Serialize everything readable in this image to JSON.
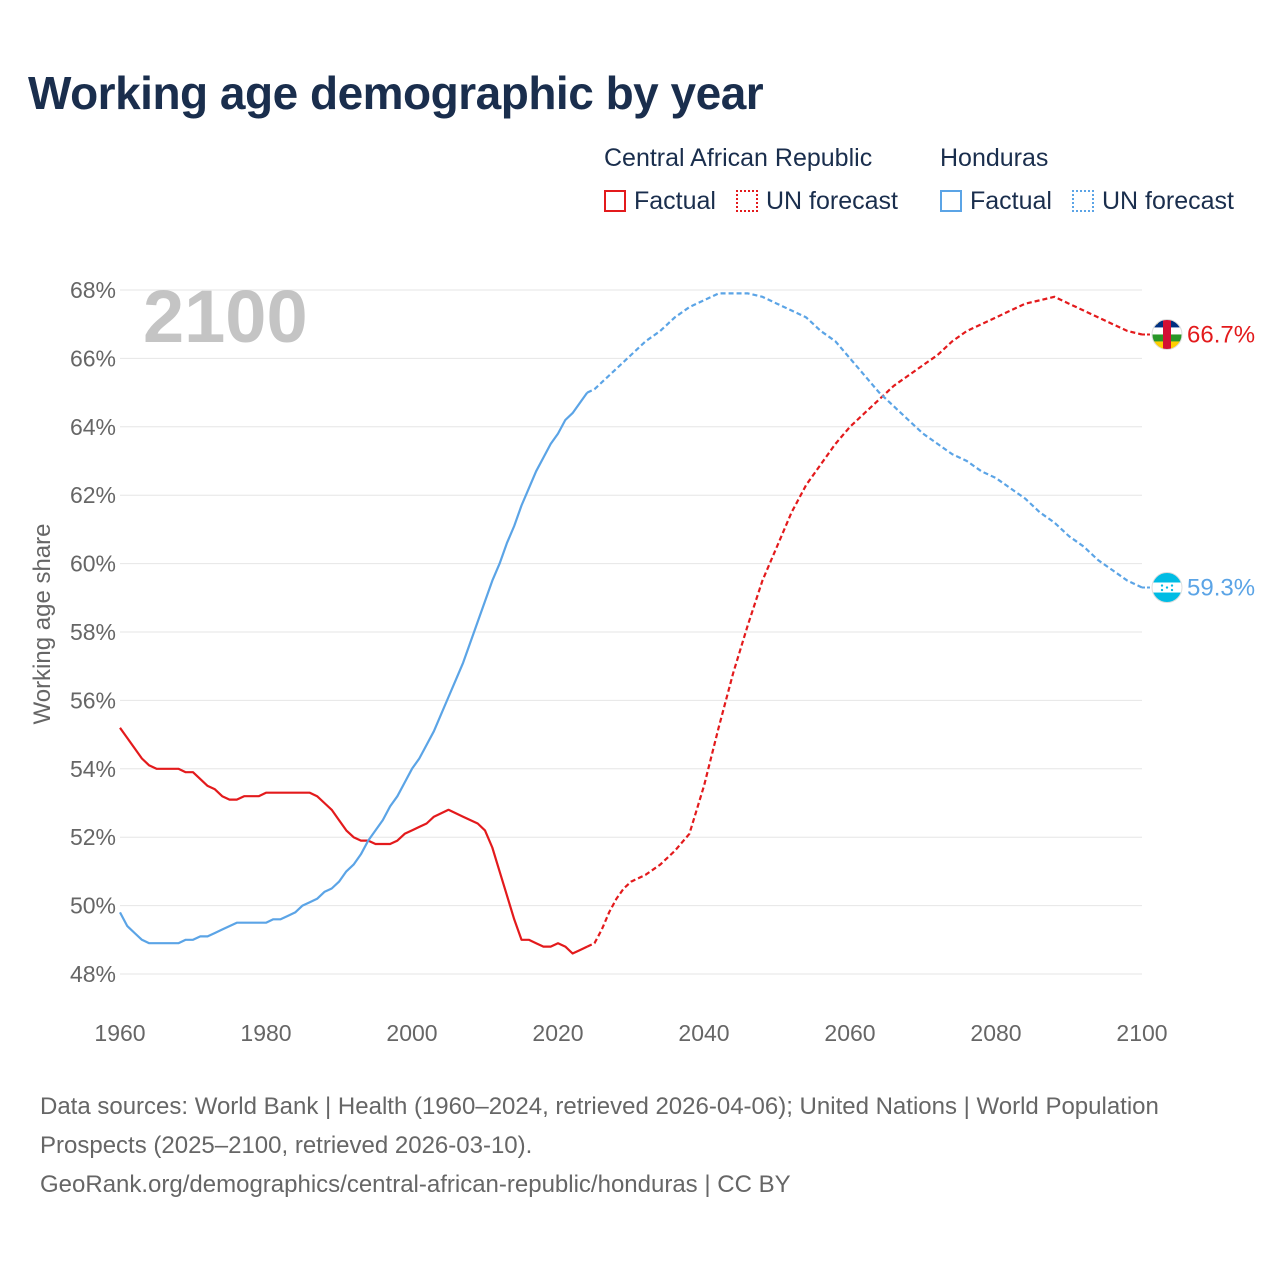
{
  "title": "Working age demographic by year",
  "legend": {
    "groups": [
      {
        "country": "Central African Republic",
        "color": "#e31a1c",
        "factual_label": "Factual",
        "forecast_label": "UN forecast"
      },
      {
        "country": "Honduras",
        "color": "#5ba4e6",
        "factual_label": "Factual",
        "forecast_label": "UN forecast"
      }
    ]
  },
  "year_watermark": "2100",
  "end_labels": {
    "car": "66.7%",
    "hnd": "59.3%"
  },
  "sources": {
    "line1": "Data sources: World Bank | Health (1960–2024, retrieved 2026-04-06); United Nations | World Population Prospects (2025–2100, retrieved 2026-03-10).",
    "line2": "GeoRank.org/demographics/central-african-republic/honduras | CC BY"
  },
  "chart_data": {
    "type": "line",
    "title": "Working age demographic by year",
    "xlabel": "",
    "ylabel": "Working age share",
    "xlim": [
      1960,
      2100
    ],
    "ylim": [
      47,
      68.5
    ],
    "x_ticks": [
      1960,
      1980,
      2000,
      2020,
      2040,
      2060,
      2080,
      2100
    ],
    "y_ticks": [
      48,
      50,
      52,
      54,
      56,
      58,
      60,
      62,
      64,
      66,
      68
    ],
    "y_tick_labels": [
      "48%",
      "50%",
      "52%",
      "54%",
      "56%",
      "58%",
      "60%",
      "62%",
      "64%",
      "66%",
      "68%"
    ],
    "x_tick_labels": [
      "1960",
      "1980",
      "2000",
      "2020",
      "2040",
      "2060",
      "2080",
      "2100"
    ],
    "factual_end_year": 2024,
    "series": [
      {
        "name": "Central African Republic",
        "color": "#e31a1c",
        "x": [
          1960,
          1961,
          1962,
          1963,
          1964,
          1965,
          1966,
          1967,
          1968,
          1969,
          1970,
          1971,
          1972,
          1973,
          1974,
          1975,
          1976,
          1977,
          1978,
          1979,
          1980,
          1981,
          1982,
          1983,
          1984,
          1985,
          1986,
          1987,
          1988,
          1989,
          1990,
          1991,
          1992,
          1993,
          1994,
          1995,
          1996,
          1997,
          1998,
          1999,
          2000,
          2001,
          2002,
          2003,
          2004,
          2005,
          2006,
          2007,
          2008,
          2009,
          2010,
          2011,
          2012,
          2013,
          2014,
          2015,
          2016,
          2017,
          2018,
          2019,
          2020,
          2021,
          2022,
          2023,
          2024,
          2025,
          2026,
          2027,
          2028,
          2029,
          2030,
          2032,
          2034,
          2036,
          2038,
          2040,
          2042,
          2044,
          2046,
          2048,
          2050,
          2052,
          2054,
          2056,
          2058,
          2060,
          2062,
          2064,
          2066,
          2068,
          2070,
          2072,
          2074,
          2076,
          2078,
          2080,
          2082,
          2084,
          2086,
          2088,
          2090,
          2092,
          2094,
          2096,
          2098,
          2100
        ],
        "y": [
          55.2,
          54.9,
          54.6,
          54.3,
          54.1,
          54.0,
          54.0,
          54.0,
          54.0,
          53.9,
          53.9,
          53.7,
          53.5,
          53.4,
          53.2,
          53.1,
          53.1,
          53.2,
          53.2,
          53.2,
          53.3,
          53.3,
          53.3,
          53.3,
          53.3,
          53.3,
          53.3,
          53.2,
          53.0,
          52.8,
          52.5,
          52.2,
          52.0,
          51.9,
          51.9,
          51.8,
          51.8,
          51.8,
          51.9,
          52.1,
          52.2,
          52.3,
          52.4,
          52.6,
          52.7,
          52.8,
          52.7,
          52.6,
          52.5,
          52.4,
          52.2,
          51.7,
          51.0,
          50.3,
          49.6,
          49.0,
          49.0,
          48.9,
          48.8,
          48.8,
          48.9,
          48.8,
          48.6,
          48.7,
          48.8,
          48.9,
          49.3,
          49.8,
          50.2,
          50.5,
          50.7,
          50.9,
          51.2,
          51.6,
          52.1,
          53.5,
          55.2,
          56.8,
          58.2,
          59.5,
          60.5,
          61.5,
          62.3,
          62.9,
          63.5,
          64.0,
          64.4,
          64.8,
          65.2,
          65.5,
          65.8,
          66.1,
          66.5,
          66.8,
          67.0,
          67.2,
          67.4,
          67.6,
          67.7,
          67.8,
          67.6,
          67.4,
          67.2,
          67.0,
          66.8,
          66.7
        ]
      },
      {
        "name": "Honduras",
        "color": "#5ba4e6",
        "x": [
          1960,
          1961,
          1962,
          1963,
          1964,
          1965,
          1966,
          1967,
          1968,
          1969,
          1970,
          1971,
          1972,
          1973,
          1974,
          1975,
          1976,
          1977,
          1978,
          1979,
          1980,
          1981,
          1982,
          1983,
          1984,
          1985,
          1986,
          1987,
          1988,
          1989,
          1990,
          1991,
          1992,
          1993,
          1994,
          1995,
          1996,
          1997,
          1998,
          1999,
          2000,
          2001,
          2002,
          2003,
          2004,
          2005,
          2006,
          2007,
          2008,
          2009,
          2010,
          2011,
          2012,
          2013,
          2014,
          2015,
          2016,
          2017,
          2018,
          2019,
          2020,
          2021,
          2022,
          2023,
          2024,
          2025,
          2026,
          2028,
          2030,
          2032,
          2034,
          2036,
          2038,
          2040,
          2042,
          2044,
          2046,
          2048,
          2050,
          2052,
          2054,
          2056,
          2058,
          2060,
          2062,
          2064,
          2066,
          2068,
          2070,
          2072,
          2074,
          2076,
          2078,
          2080,
          2082,
          2084,
          2086,
          2088,
          2090,
          2092,
          2094,
          2096,
          2098,
          2100
        ],
        "y": [
          49.8,
          49.4,
          49.2,
          49.0,
          48.9,
          48.9,
          48.9,
          48.9,
          48.9,
          49.0,
          49.0,
          49.1,
          49.1,
          49.2,
          49.3,
          49.4,
          49.5,
          49.5,
          49.5,
          49.5,
          49.5,
          49.6,
          49.6,
          49.7,
          49.8,
          50.0,
          50.1,
          50.2,
          50.4,
          50.5,
          50.7,
          51.0,
          51.2,
          51.5,
          51.9,
          52.2,
          52.5,
          52.9,
          53.2,
          53.6,
          54.0,
          54.3,
          54.7,
          55.1,
          55.6,
          56.1,
          56.6,
          57.1,
          57.7,
          58.3,
          58.9,
          59.5,
          60.0,
          60.6,
          61.1,
          61.7,
          62.2,
          62.7,
          63.1,
          63.5,
          63.8,
          64.2,
          64.4,
          64.7,
          65.0,
          65.1,
          65.3,
          65.7,
          66.1,
          66.5,
          66.8,
          67.2,
          67.5,
          67.7,
          67.9,
          67.9,
          67.9,
          67.8,
          67.6,
          67.4,
          67.2,
          66.8,
          66.5,
          66.0,
          65.5,
          65.0,
          64.6,
          64.2,
          63.8,
          63.5,
          63.2,
          63.0,
          62.7,
          62.5,
          62.2,
          61.9,
          61.5,
          61.2,
          60.8,
          60.5,
          60.1,
          59.8,
          59.5,
          59.3
        ]
      }
    ]
  }
}
